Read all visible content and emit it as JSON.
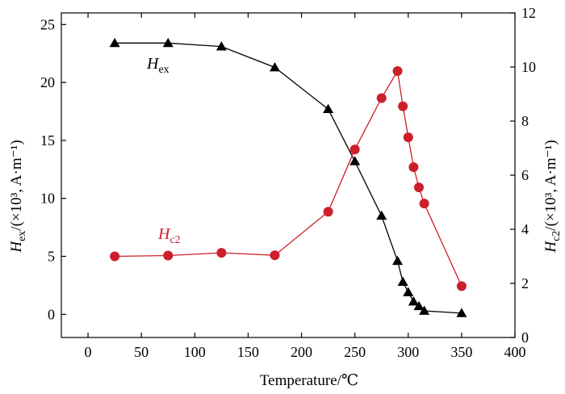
{
  "chart_data": {
    "type": "line",
    "xlabel": "Temperature/℃",
    "ylabel_left": {
      "var": "H",
      "sub": "ex",
      "rest": "/(×10³, A·m⁻¹)"
    },
    "ylabel_right": {
      "var": "H",
      "sub": "c2",
      "rest": "/(×10³, A·m⁻¹)"
    },
    "xlim": [
      -25,
      400
    ],
    "xticks": [
      0,
      50,
      100,
      150,
      200,
      250,
      300,
      350,
      400
    ],
    "ylim_left": [
      -2,
      26
    ],
    "yticks_left": [
      0,
      5,
      10,
      15,
      20,
      25
    ],
    "ylim_right": [
      0,
      12
    ],
    "yticks_right": [
      0,
      2,
      4,
      6,
      8,
      10,
      12
    ],
    "grid": false,
    "series": [
      {
        "name": "Hex",
        "label": {
          "var": "H",
          "sub": "ex"
        },
        "axis": "left",
        "color": "#000000",
        "marker": "triangle",
        "x": [
          25,
          75,
          125,
          175,
          225,
          250,
          275,
          290,
          295,
          300,
          305,
          310,
          315,
          350
        ],
        "y": [
          23.4,
          23.4,
          23.1,
          21.3,
          17.7,
          13.2,
          8.5,
          4.6,
          2.8,
          1.9,
          1.1,
          0.7,
          0.3,
          0.1
        ]
      },
      {
        "name": "Hc2",
        "label": {
          "var": "H",
          "sub": "c2"
        },
        "axis": "right",
        "color": "#cc1f2a",
        "marker": "circle",
        "x": [
          25,
          75,
          125,
          175,
          225,
          250,
          275,
          290,
          295,
          300,
          305,
          310,
          315,
          350
        ],
        "y": [
          3.0,
          3.03,
          3.13,
          3.04,
          4.65,
          6.95,
          8.85,
          9.85,
          8.55,
          7.4,
          6.3,
          5.55,
          4.95,
          1.9
        ]
      }
    ]
  }
}
